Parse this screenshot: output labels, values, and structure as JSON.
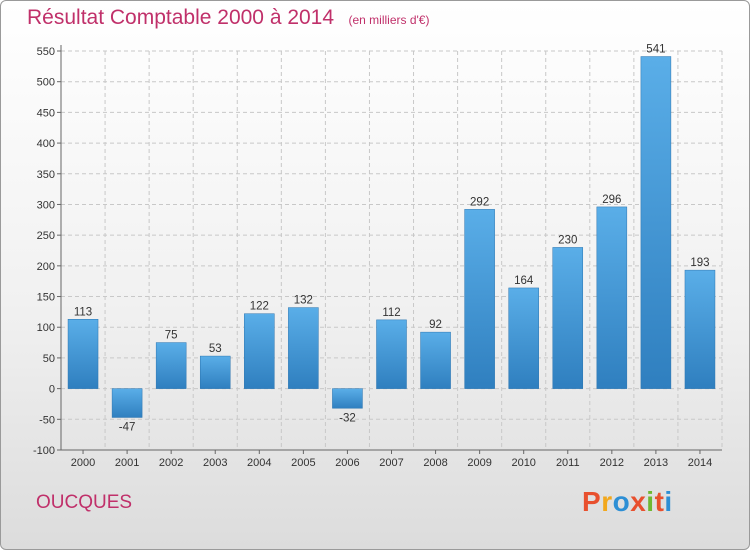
{
  "header": {
    "title": "Résultat Comptable 2000 à 2014",
    "subtitle": "(en milliers d'€)"
  },
  "footer": {
    "commune": "OUCQUES",
    "logo": "Proxiti",
    "logo_colors": [
      "#e8502e",
      "#f2a81d",
      "#2d8fd5",
      "#e8502e",
      "#6fb832",
      "#e8502e",
      "#2d8fd5"
    ]
  },
  "chart_data": {
    "type": "bar",
    "title": "Résultat Comptable 2000 à 2014",
    "subtitle": "(en milliers d'€)",
    "xlabel": "",
    "ylabel": "",
    "categories": [
      "2000",
      "2001",
      "2002",
      "2003",
      "2004",
      "2005",
      "2006",
      "2007",
      "2008",
      "2009",
      "2010",
      "2011",
      "2012",
      "2013",
      "2014"
    ],
    "values": [
      113,
      -47,
      75,
      53,
      122,
      132,
      -32,
      112,
      92,
      292,
      164,
      230,
      296,
      541,
      193
    ],
    "ylim": [
      -100,
      550
    ],
    "yticks": [
      -100,
      -50,
      0,
      50,
      100,
      150,
      200,
      250,
      300,
      350,
      400,
      450,
      500,
      550
    ],
    "grid": true,
    "bar_color": "#3a8fd0"
  }
}
